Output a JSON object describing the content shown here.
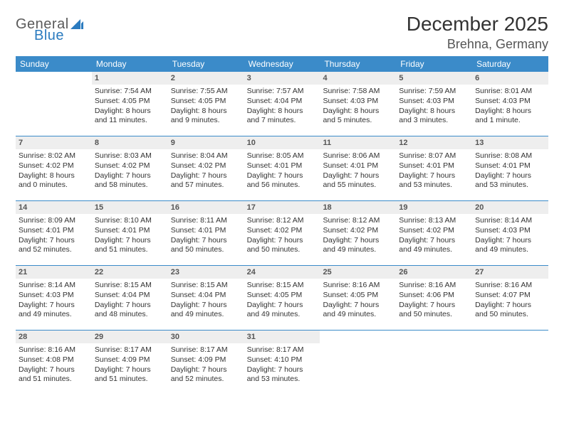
{
  "logo": {
    "word1": "General",
    "word2": "Blue"
  },
  "title": "December 2025",
  "location": "Brehna, Germany",
  "colors": {
    "header_bg": "#3b8bc9",
    "header_text": "#ffffff",
    "daynum_bg": "#eeeeee",
    "divider": "#3b8bc9",
    "logo_gray": "#5a5a5a",
    "logo_blue": "#2b7bbf"
  },
  "weekdays": [
    "Sunday",
    "Monday",
    "Tuesday",
    "Wednesday",
    "Thursday",
    "Friday",
    "Saturday"
  ],
  "weeks": [
    [
      {
        "n": "",
        "empty": true
      },
      {
        "n": "1",
        "sunrise": "Sunrise: 7:54 AM",
        "sunset": "Sunset: 4:05 PM",
        "daylight": "Daylight: 8 hours and 11 minutes."
      },
      {
        "n": "2",
        "sunrise": "Sunrise: 7:55 AM",
        "sunset": "Sunset: 4:05 PM",
        "daylight": "Daylight: 8 hours and 9 minutes."
      },
      {
        "n": "3",
        "sunrise": "Sunrise: 7:57 AM",
        "sunset": "Sunset: 4:04 PM",
        "daylight": "Daylight: 8 hours and 7 minutes."
      },
      {
        "n": "4",
        "sunrise": "Sunrise: 7:58 AM",
        "sunset": "Sunset: 4:03 PM",
        "daylight": "Daylight: 8 hours and 5 minutes."
      },
      {
        "n": "5",
        "sunrise": "Sunrise: 7:59 AM",
        "sunset": "Sunset: 4:03 PM",
        "daylight": "Daylight: 8 hours and 3 minutes."
      },
      {
        "n": "6",
        "sunrise": "Sunrise: 8:01 AM",
        "sunset": "Sunset: 4:03 PM",
        "daylight": "Daylight: 8 hours and 1 minute."
      }
    ],
    [
      {
        "n": "7",
        "sunrise": "Sunrise: 8:02 AM",
        "sunset": "Sunset: 4:02 PM",
        "daylight": "Daylight: 8 hours and 0 minutes."
      },
      {
        "n": "8",
        "sunrise": "Sunrise: 8:03 AM",
        "sunset": "Sunset: 4:02 PM",
        "daylight": "Daylight: 7 hours and 58 minutes."
      },
      {
        "n": "9",
        "sunrise": "Sunrise: 8:04 AM",
        "sunset": "Sunset: 4:02 PM",
        "daylight": "Daylight: 7 hours and 57 minutes."
      },
      {
        "n": "10",
        "sunrise": "Sunrise: 8:05 AM",
        "sunset": "Sunset: 4:01 PM",
        "daylight": "Daylight: 7 hours and 56 minutes."
      },
      {
        "n": "11",
        "sunrise": "Sunrise: 8:06 AM",
        "sunset": "Sunset: 4:01 PM",
        "daylight": "Daylight: 7 hours and 55 minutes."
      },
      {
        "n": "12",
        "sunrise": "Sunrise: 8:07 AM",
        "sunset": "Sunset: 4:01 PM",
        "daylight": "Daylight: 7 hours and 53 minutes."
      },
      {
        "n": "13",
        "sunrise": "Sunrise: 8:08 AM",
        "sunset": "Sunset: 4:01 PM",
        "daylight": "Daylight: 7 hours and 53 minutes."
      }
    ],
    [
      {
        "n": "14",
        "sunrise": "Sunrise: 8:09 AM",
        "sunset": "Sunset: 4:01 PM",
        "daylight": "Daylight: 7 hours and 52 minutes."
      },
      {
        "n": "15",
        "sunrise": "Sunrise: 8:10 AM",
        "sunset": "Sunset: 4:01 PM",
        "daylight": "Daylight: 7 hours and 51 minutes."
      },
      {
        "n": "16",
        "sunrise": "Sunrise: 8:11 AM",
        "sunset": "Sunset: 4:01 PM",
        "daylight": "Daylight: 7 hours and 50 minutes."
      },
      {
        "n": "17",
        "sunrise": "Sunrise: 8:12 AM",
        "sunset": "Sunset: 4:02 PM",
        "daylight": "Daylight: 7 hours and 50 minutes."
      },
      {
        "n": "18",
        "sunrise": "Sunrise: 8:12 AM",
        "sunset": "Sunset: 4:02 PM",
        "daylight": "Daylight: 7 hours and 49 minutes."
      },
      {
        "n": "19",
        "sunrise": "Sunrise: 8:13 AM",
        "sunset": "Sunset: 4:02 PM",
        "daylight": "Daylight: 7 hours and 49 minutes."
      },
      {
        "n": "20",
        "sunrise": "Sunrise: 8:14 AM",
        "sunset": "Sunset: 4:03 PM",
        "daylight": "Daylight: 7 hours and 49 minutes."
      }
    ],
    [
      {
        "n": "21",
        "sunrise": "Sunrise: 8:14 AM",
        "sunset": "Sunset: 4:03 PM",
        "daylight": "Daylight: 7 hours and 49 minutes."
      },
      {
        "n": "22",
        "sunrise": "Sunrise: 8:15 AM",
        "sunset": "Sunset: 4:04 PM",
        "daylight": "Daylight: 7 hours and 48 minutes."
      },
      {
        "n": "23",
        "sunrise": "Sunrise: 8:15 AM",
        "sunset": "Sunset: 4:04 PM",
        "daylight": "Daylight: 7 hours and 49 minutes."
      },
      {
        "n": "24",
        "sunrise": "Sunrise: 8:15 AM",
        "sunset": "Sunset: 4:05 PM",
        "daylight": "Daylight: 7 hours and 49 minutes."
      },
      {
        "n": "25",
        "sunrise": "Sunrise: 8:16 AM",
        "sunset": "Sunset: 4:05 PM",
        "daylight": "Daylight: 7 hours and 49 minutes."
      },
      {
        "n": "26",
        "sunrise": "Sunrise: 8:16 AM",
        "sunset": "Sunset: 4:06 PM",
        "daylight": "Daylight: 7 hours and 50 minutes."
      },
      {
        "n": "27",
        "sunrise": "Sunrise: 8:16 AM",
        "sunset": "Sunset: 4:07 PM",
        "daylight": "Daylight: 7 hours and 50 minutes."
      }
    ],
    [
      {
        "n": "28",
        "sunrise": "Sunrise: 8:16 AM",
        "sunset": "Sunset: 4:08 PM",
        "daylight": "Daylight: 7 hours and 51 minutes."
      },
      {
        "n": "29",
        "sunrise": "Sunrise: 8:17 AM",
        "sunset": "Sunset: 4:09 PM",
        "daylight": "Daylight: 7 hours and 51 minutes."
      },
      {
        "n": "30",
        "sunrise": "Sunrise: 8:17 AM",
        "sunset": "Sunset: 4:09 PM",
        "daylight": "Daylight: 7 hours and 52 minutes."
      },
      {
        "n": "31",
        "sunrise": "Sunrise: 8:17 AM",
        "sunset": "Sunset: 4:10 PM",
        "daylight": "Daylight: 7 hours and 53 minutes."
      },
      {
        "n": "",
        "empty": true
      },
      {
        "n": "",
        "empty": true
      },
      {
        "n": "",
        "empty": true
      }
    ]
  ]
}
